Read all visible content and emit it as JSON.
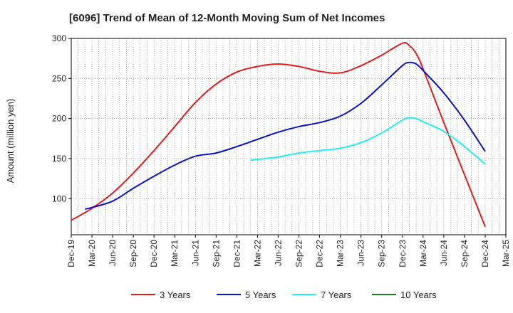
{
  "chart_data": {
    "type": "line",
    "title": "[6096]  Trend of Mean of 12-Month Moving Sum of Net Incomes",
    "xlabel": "",
    "ylabel": "Amount (million yen)",
    "ylim": [
      55,
      300
    ],
    "yticks": [
      100,
      150,
      200,
      250,
      300
    ],
    "xlim": [
      "2019-12",
      "2025-03"
    ],
    "xticks": [
      "Dec-19",
      "Mar-20",
      "Jun-20",
      "Sep-20",
      "Dec-20",
      "Mar-21",
      "Jun-21",
      "Sep-21",
      "Dec-21",
      "Mar-22",
      "Jun-22",
      "Sep-22",
      "Dec-22",
      "Mar-23",
      "Jun-23",
      "Sep-23",
      "Dec-23",
      "Mar-24",
      "Jun-24",
      "Sep-24",
      "Dec-24",
      "Mar-25"
    ],
    "grid": true,
    "legend_position": "bottom",
    "series": [
      {
        "name": "3 Years",
        "color": "#e41a1c",
        "points": [
          [
            "2019-12",
            73
          ],
          [
            "2020-03",
            88
          ],
          [
            "2020-06",
            107
          ],
          [
            "2020-09",
            132
          ],
          [
            "2020-12",
            160
          ],
          [
            "2021-03",
            190
          ],
          [
            "2021-06",
            220
          ],
          [
            "2021-09",
            243
          ],
          [
            "2021-12",
            258
          ],
          [
            "2022-03",
            265
          ],
          [
            "2022-06",
            268
          ],
          [
            "2022-09",
            265
          ],
          [
            "2022-12",
            259
          ],
          [
            "2023-03",
            257
          ],
          [
            "2023-06",
            266
          ],
          [
            "2023-09",
            279
          ],
          [
            "2023-12",
            294
          ],
          [
            "2024-01",
            291
          ],
          [
            "2024-02",
            281
          ],
          [
            "2024-03",
            262
          ],
          [
            "2024-06",
            195
          ],
          [
            "2024-09",
            130
          ],
          [
            "2024-12",
            65
          ]
        ]
      },
      {
        "name": "5 Years",
        "color": "#0a10c8",
        "points": [
          [
            "2020-02",
            87
          ],
          [
            "2020-03",
            89
          ],
          [
            "2020-06",
            97
          ],
          [
            "2020-09",
            113
          ],
          [
            "2020-12",
            128
          ],
          [
            "2021-03",
            142
          ],
          [
            "2021-06",
            153
          ],
          [
            "2021-09",
            157
          ],
          [
            "2021-12",
            165
          ],
          [
            "2022-03",
            174
          ],
          [
            "2022-06",
            183
          ],
          [
            "2022-09",
            190
          ],
          [
            "2022-12",
            195
          ],
          [
            "2023-03",
            203
          ],
          [
            "2023-06",
            219
          ],
          [
            "2023-09",
            242
          ],
          [
            "2023-12",
            266
          ],
          [
            "2024-01",
            270
          ],
          [
            "2024-02",
            268
          ],
          [
            "2024-03",
            260
          ],
          [
            "2024-06",
            232
          ],
          [
            "2024-09",
            198
          ],
          [
            "2024-12",
            159
          ]
        ]
      },
      {
        "name": "7 Years",
        "color": "#22eeee",
        "points": [
          [
            "2022-02",
            148
          ],
          [
            "2022-06",
            152
          ],
          [
            "2022-09",
            157
          ],
          [
            "2022-12",
            160
          ],
          [
            "2023-03",
            163
          ],
          [
            "2023-06",
            170
          ],
          [
            "2023-09",
            182
          ],
          [
            "2023-12",
            198
          ],
          [
            "2024-01",
            201
          ],
          [
            "2024-02",
            200
          ],
          [
            "2024-03",
            196
          ],
          [
            "2024-06",
            184
          ],
          [
            "2024-09",
            165
          ],
          [
            "2024-12",
            143
          ]
        ]
      },
      {
        "name": "10 Years",
        "color": "#1e7e1e",
        "points": []
      }
    ]
  }
}
